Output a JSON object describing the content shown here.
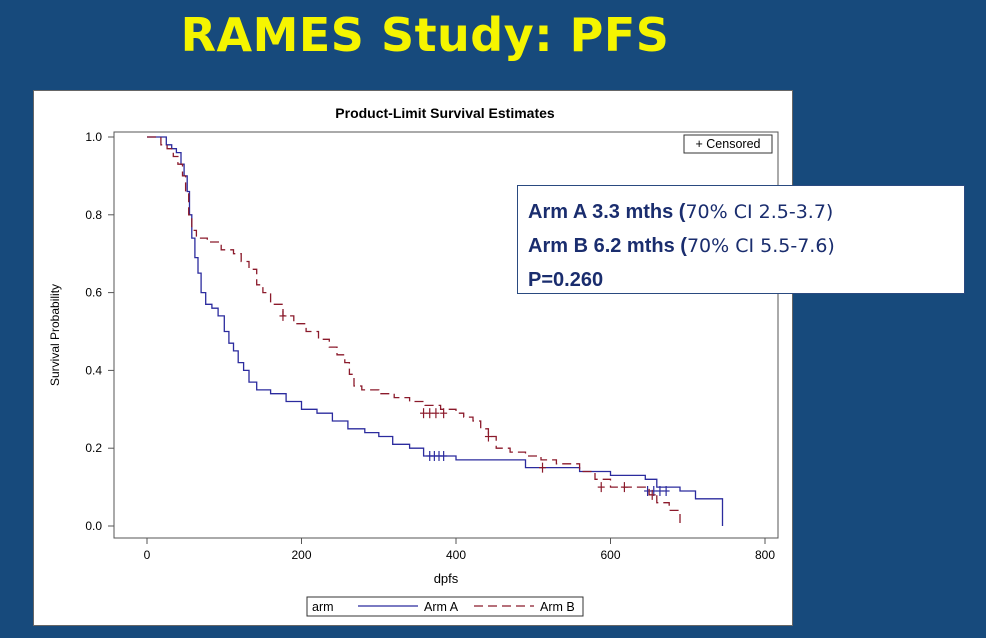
{
  "slide": {
    "title": "RAMES Study:  PFS"
  },
  "summary": {
    "arm_a_label": "Arm A  3.3 mths (",
    "arm_a_ci": "70% CI 2.5-3.7)",
    "arm_b_label": "Arm B  6.2 mths (",
    "arm_b_ci": "70% CI 5.5-7.6)",
    "p_value": "P=0.260"
  },
  "colors": {
    "background": "#174a7c",
    "title": "#f5f500",
    "arm_a": "#2b2b9e",
    "arm_b": "#8b1a2b",
    "summary_text": "#1a2d6e"
  },
  "chart_data": {
    "type": "line",
    "title": "Product-Limit Survival Estimates",
    "xlabel": "dpfs",
    "ylabel": "Survival Probability",
    "xlim": [
      0,
      800
    ],
    "ylim": [
      0,
      1.0
    ],
    "x_ticks": [
      0,
      200,
      400,
      600,
      800
    ],
    "y_ticks": [
      0.0,
      0.2,
      0.4,
      0.6,
      0.8,
      1.0
    ],
    "x_tick_labels": [
      "0",
      "200",
      "400",
      "600",
      "800"
    ],
    "y_tick_labels": [
      "0.0",
      "0.2",
      "0.4",
      "0.6",
      "0.8",
      "1.0"
    ],
    "censor_legend": "+ Censored",
    "legend": {
      "title": "arm",
      "placement": "bottom",
      "entries": [
        "Arm A",
        "Arm B"
      ]
    },
    "series": [
      {
        "name": "Arm A",
        "style": "solid",
        "steps": [
          [
            0,
            1.0
          ],
          [
            25,
            1.0
          ],
          [
            25,
            0.98
          ],
          [
            32,
            0.97
          ],
          [
            38,
            0.96
          ],
          [
            44,
            0.93
          ],
          [
            48,
            0.9
          ],
          [
            52,
            0.86
          ],
          [
            55,
            0.8
          ],
          [
            58,
            0.74
          ],
          [
            62,
            0.69
          ],
          [
            66,
            0.65
          ],
          [
            70,
            0.6
          ],
          [
            76,
            0.57
          ],
          [
            84,
            0.56
          ],
          [
            92,
            0.54
          ],
          [
            100,
            0.5
          ],
          [
            106,
            0.47
          ],
          [
            112,
            0.45
          ],
          [
            118,
            0.42
          ],
          [
            125,
            0.4
          ],
          [
            132,
            0.37
          ],
          [
            142,
            0.35
          ],
          [
            160,
            0.34
          ],
          [
            180,
            0.32
          ],
          [
            200,
            0.3
          ],
          [
            220,
            0.29
          ],
          [
            240,
            0.27
          ],
          [
            260,
            0.25
          ],
          [
            282,
            0.24
          ],
          [
            300,
            0.23
          ],
          [
            318,
            0.21
          ],
          [
            340,
            0.2
          ],
          [
            358,
            0.18
          ],
          [
            390,
            0.18
          ],
          [
            400,
            0.17
          ],
          [
            440,
            0.17
          ],
          [
            490,
            0.15
          ],
          [
            560,
            0.14
          ],
          [
            600,
            0.13
          ],
          [
            645,
            0.12
          ],
          [
            660,
            0.1
          ],
          [
            690,
            0.09
          ],
          [
            710,
            0.07
          ],
          [
            745,
            0.04
          ],
          [
            745,
            0.0
          ]
        ],
        "censored": [
          [
            366,
            0.18
          ],
          [
            372,
            0.18
          ],
          [
            378,
            0.18
          ],
          [
            384,
            0.18
          ],
          [
            648,
            0.09
          ],
          [
            656,
            0.09
          ],
          [
            664,
            0.09
          ],
          [
            672,
            0.09
          ]
        ]
      },
      {
        "name": "Arm B",
        "style": "dashed",
        "steps": [
          [
            0,
            1.0
          ],
          [
            18,
            1.0
          ],
          [
            18,
            0.98
          ],
          [
            26,
            0.97
          ],
          [
            34,
            0.95
          ],
          [
            40,
            0.93
          ],
          [
            46,
            0.9
          ],
          [
            50,
            0.86
          ],
          [
            54,
            0.8
          ],
          [
            58,
            0.76
          ],
          [
            64,
            0.74
          ],
          [
            78,
            0.73
          ],
          [
            96,
            0.71
          ],
          [
            112,
            0.7
          ],
          [
            122,
            0.68
          ],
          [
            132,
            0.66
          ],
          [
            142,
            0.62
          ],
          [
            150,
            0.6
          ],
          [
            160,
            0.57
          ],
          [
            176,
            0.54
          ],
          [
            190,
            0.52
          ],
          [
            206,
            0.5
          ],
          [
            222,
            0.48
          ],
          [
            236,
            0.46
          ],
          [
            246,
            0.44
          ],
          [
            256,
            0.42
          ],
          [
            262,
            0.39
          ],
          [
            268,
            0.36
          ],
          [
            278,
            0.35
          ],
          [
            300,
            0.34
          ],
          [
            320,
            0.33
          ],
          [
            340,
            0.32
          ],
          [
            360,
            0.31
          ],
          [
            380,
            0.3
          ],
          [
            400,
            0.29
          ],
          [
            410,
            0.28
          ],
          [
            422,
            0.27
          ],
          [
            432,
            0.25
          ],
          [
            442,
            0.23
          ],
          [
            452,
            0.2
          ],
          [
            470,
            0.19
          ],
          [
            490,
            0.18
          ],
          [
            510,
            0.17
          ],
          [
            530,
            0.16
          ],
          [
            560,
            0.14
          ],
          [
            580,
            0.12
          ],
          [
            600,
            0.1
          ],
          [
            640,
            0.1
          ],
          [
            650,
            0.08
          ],
          [
            660,
            0.06
          ],
          [
            676,
            0.04
          ],
          [
            690,
            0.02
          ],
          [
            690,
            0.0
          ]
        ],
        "censored": [
          [
            176,
            0.54
          ],
          [
            358,
            0.29
          ],
          [
            366,
            0.29
          ],
          [
            374,
            0.29
          ],
          [
            384,
            0.29
          ],
          [
            442,
            0.23
          ],
          [
            512,
            0.15
          ],
          [
            588,
            0.1
          ],
          [
            618,
            0.1
          ],
          [
            654,
            0.08
          ]
        ]
      }
    ]
  }
}
